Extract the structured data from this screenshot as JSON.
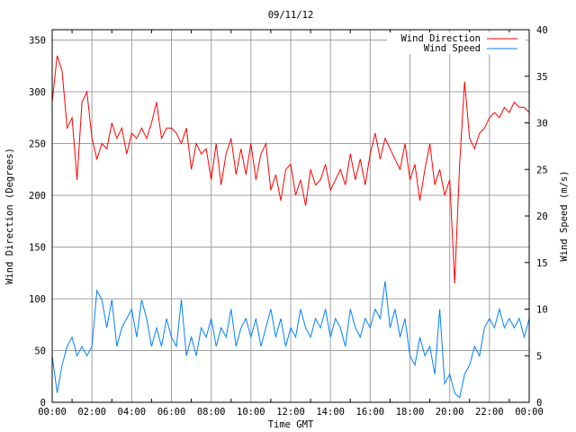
{
  "chart_data": {
    "type": "line",
    "title": "09/11/12",
    "xlabel": "Time GMT",
    "ylabel": "Wind Direction (Degrees)",
    "y2label": "Wind Speed (m/s)",
    "xlim_hours": [
      0,
      24
    ],
    "ylim": [
      0,
      360
    ],
    "y2lim": [
      0,
      40
    ],
    "grid": true,
    "legend_position": "top-right",
    "x_tick_labels": [
      "00:00",
      "02:00",
      "04:00",
      "06:00",
      "08:00",
      "10:00",
      "12:00",
      "14:00",
      "16:00",
      "18:00",
      "20:00",
      "22:00",
      "00:00"
    ],
    "y_tick_labels": [
      "0",
      "50",
      "100",
      "150",
      "200",
      "250",
      "300",
      "350"
    ],
    "y2_tick_labels": [
      "0",
      "5",
      "10",
      "15",
      "20",
      "25",
      "30",
      "35",
      "40"
    ],
    "x_start_hours": 0,
    "x_step_hours": 0.25,
    "series": [
      {
        "name": "Wind Direction",
        "axis": "left",
        "color": "#ff0000",
        "values": [
          290,
          335,
          320,
          265,
          275,
          215,
          290,
          300,
          255,
          235,
          250,
          245,
          270,
          255,
          265,
          240,
          260,
          255,
          265,
          255,
          270,
          290,
          255,
          265,
          265,
          260,
          250,
          265,
          225,
          250,
          240,
          245,
          215,
          250,
          210,
          240,
          255,
          220,
          245,
          220,
          250,
          215,
          240,
          250,
          205,
          220,
          195,
          225,
          230,
          200,
          215,
          190,
          225,
          210,
          215,
          230,
          205,
          215,
          225,
          210,
          240,
          215,
          235,
          210,
          240,
          260,
          235,
          255,
          245,
          235,
          225,
          250,
          215,
          230,
          195,
          225,
          250,
          210,
          225,
          200,
          215,
          115,
          230,
          310,
          255,
          245,
          260,
          265,
          275,
          280,
          275,
          285,
          280,
          290,
          285,
          285,
          280
        ]
      },
      {
        "name": "Wind Speed",
        "axis": "right",
        "color": "#0080ff",
        "values": [
          5,
          1,
          4,
          6,
          7,
          5,
          6,
          5,
          6,
          12,
          11,
          8,
          11,
          6,
          8,
          9,
          10,
          7,
          11,
          9,
          6,
          8,
          6,
          9,
          7,
          6,
          11,
          5,
          7,
          5,
          8,
          7,
          9,
          6,
          8,
          7,
          10,
          6,
          8,
          9,
          7,
          9,
          6,
          8,
          10,
          7,
          9,
          6,
          8,
          7,
          10,
          8,
          7,
          9,
          8,
          10,
          7,
          9,
          8,
          6,
          10,
          8,
          7,
          9,
          8,
          10,
          9,
          13,
          8,
          10,
          7,
          9,
          5,
          4,
          7,
          5,
          6,
          3,
          10,
          2,
          3,
          1,
          0.5,
          3,
          4,
          6,
          5,
          8,
          9,
          8,
          10,
          8,
          9,
          8,
          9,
          7,
          9
        ]
      }
    ]
  }
}
